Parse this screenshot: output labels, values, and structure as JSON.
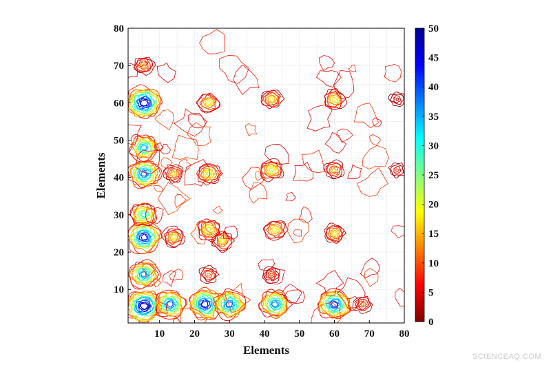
{
  "chart_data": {
    "type": "heatmap",
    "plot_style": "contour",
    "title": "",
    "xlabel": "Elements",
    "ylabel": "Elements",
    "xlim": [
      1,
      80
    ],
    "ylim": [
      1,
      80
    ],
    "x_ticks": [
      10,
      20,
      30,
      40,
      50,
      60,
      70,
      80
    ],
    "y_ticks": [
      10,
      20,
      30,
      40,
      50,
      60,
      70,
      80
    ],
    "colorbar": {
      "min": 0,
      "max": 50,
      "ticks": [
        0,
        5,
        10,
        15,
        20,
        25,
        30,
        35,
        40,
        45,
        50
      ],
      "colormap": [
        "#7f0000",
        "#ff0000",
        "#ff8000",
        "#ffff00",
        "#80ff80",
        "#00ffff",
        "#0080ff",
        "#0000ff",
        "#00008f"
      ]
    },
    "grid": true,
    "features": [
      {
        "x": 5.5,
        "y": 5.5,
        "value": 50
      },
      {
        "x": 5.5,
        "y": 14,
        "value": 38
      },
      {
        "x": 5.5,
        "y": 24,
        "value": 45
      },
      {
        "x": 5.5,
        "y": 30,
        "value": 30
      },
      {
        "x": 5.5,
        "y": 41,
        "value": 40
      },
      {
        "x": 5.5,
        "y": 48,
        "value": 35
      },
      {
        "x": 5.5,
        "y": 60,
        "value": 48
      },
      {
        "x": 5.5,
        "y": 70,
        "value": 15
      },
      {
        "x": 13,
        "y": 6,
        "value": 40
      },
      {
        "x": 23,
        "y": 6,
        "value": 45
      },
      {
        "x": 30,
        "y": 6,
        "value": 40
      },
      {
        "x": 43,
        "y": 6,
        "value": 38
      },
      {
        "x": 60,
        "y": 6,
        "value": 42
      },
      {
        "x": 68,
        "y": 6,
        "value": 12
      },
      {
        "x": 14,
        "y": 24,
        "value": 18
      },
      {
        "x": 14,
        "y": 41,
        "value": 16
      },
      {
        "x": 24,
        "y": 14,
        "value": 12
      },
      {
        "x": 24,
        "y": 26,
        "value": 22
      },
      {
        "x": 28,
        "y": 23,
        "value": 18
      },
      {
        "x": 24,
        "y": 41,
        "value": 22
      },
      {
        "x": 24,
        "y": 60,
        "value": 20
      },
      {
        "x": 42,
        "y": 14,
        "value": 10
      },
      {
        "x": 43,
        "y": 26,
        "value": 20
      },
      {
        "x": 42,
        "y": 42,
        "value": 22
      },
      {
        "x": 42,
        "y": 61,
        "value": 18
      },
      {
        "x": 60,
        "y": 25,
        "value": 18
      },
      {
        "x": 60,
        "y": 42,
        "value": 15
      },
      {
        "x": 60,
        "y": 61,
        "value": 20
      },
      {
        "x": 78,
        "y": 42,
        "value": 8
      },
      {
        "x": 78,
        "y": 61,
        "value": 6
      }
    ]
  },
  "watermark": "SCIENCEAQ.COM"
}
